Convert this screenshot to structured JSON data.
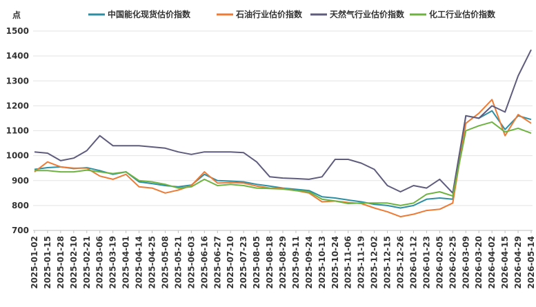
{
  "chart_data": {
    "type": "line",
    "unit_label": "点",
    "ylim": [
      700,
      1500
    ],
    "y_ticks": [
      700,
      800,
      900,
      1000,
      1100,
      1200,
      1300,
      1400,
      1500
    ],
    "grid": "horizontal",
    "legend_position": "top",
    "x": [
      "2025-01-02",
      "2025-01-15",
      "2025-01-28",
      "2025-02-10",
      "2025-02-21",
      "2025-03-06",
      "2025-03-19",
      "2025-04-01",
      "2025-04-14",
      "2025-04-25",
      "2025-05-08",
      "2025-05-21",
      "2025-06-03",
      "2025-06-16",
      "2025-06-27",
      "2025-07-10",
      "2025-07-23",
      "2025-08-05",
      "2025-08-18",
      "2025-08-29",
      "2025-09-11",
      "2025-09-24",
      "2025-10-13",
      "2025-10-24",
      "2025-11-06",
      "2025-11-19",
      "2025-12-02",
      "2025-12-15",
      "2025-12-26",
      "2026-01-12",
      "2026-01-23",
      "2026-02-05",
      "2026-02-25",
      "2026-03-09",
      "2026-03-20",
      "2026-04-02",
      "2026-04-15",
      "2026-04-29",
      "2026-05-14"
    ],
    "series": [
      {
        "name": "中国能化现货估价指数",
        "color": "#2b8ea3",
        "values": [
          945,
          952,
          955,
          948,
          952,
          940,
          925,
          935,
          895,
          888,
          880,
          875,
          882,
          925,
          900,
          898,
          895,
          885,
          878,
          870,
          865,
          860,
          835,
          830,
          822,
          815,
          805,
          800,
          790,
          800,
          825,
          830,
          825,
          1160,
          1150,
          1180,
          1105,
          1160,
          1145
        ]
      },
      {
        "name": "石油行业估价指数",
        "color": "#ec7b35",
        "values": [
          935,
          975,
          955,
          950,
          950,
          918,
          905,
          925,
          875,
          870,
          850,
          862,
          880,
          935,
          890,
          892,
          890,
          878,
          870,
          868,
          860,
          850,
          815,
          818,
          812,
          808,
          790,
          775,
          755,
          765,
          780,
          785,
          810,
          1130,
          1170,
          1225,
          1080,
          1165,
          1130
        ]
      },
      {
        "name": "天然气行业估价指数",
        "color": "#5e5b7d",
        "values": [
          1015,
          1010,
          980,
          990,
          1020,
          1080,
          1040,
          1040,
          1040,
          1035,
          1030,
          1015,
          1005,
          1015,
          1015,
          1015,
          1012,
          975,
          915,
          910,
          908,
          905,
          915,
          985,
          985,
          970,
          945,
          880,
          855,
          880,
          870,
          905,
          850,
          1160,
          1150,
          1200,
          1175,
          1320,
          1425
        ]
      },
      {
        "name": "化工行业估价指数",
        "color": "#6eb240",
        "values": [
          940,
          940,
          935,
          935,
          942,
          935,
          928,
          935,
          900,
          895,
          885,
          870,
          875,
          905,
          880,
          885,
          880,
          870,
          868,
          866,
          860,
          855,
          825,
          818,
          808,
          810,
          810,
          810,
          800,
          810,
          845,
          855,
          838,
          1100,
          1120,
          1135,
          1095,
          1110,
          1090
        ]
      }
    ]
  }
}
